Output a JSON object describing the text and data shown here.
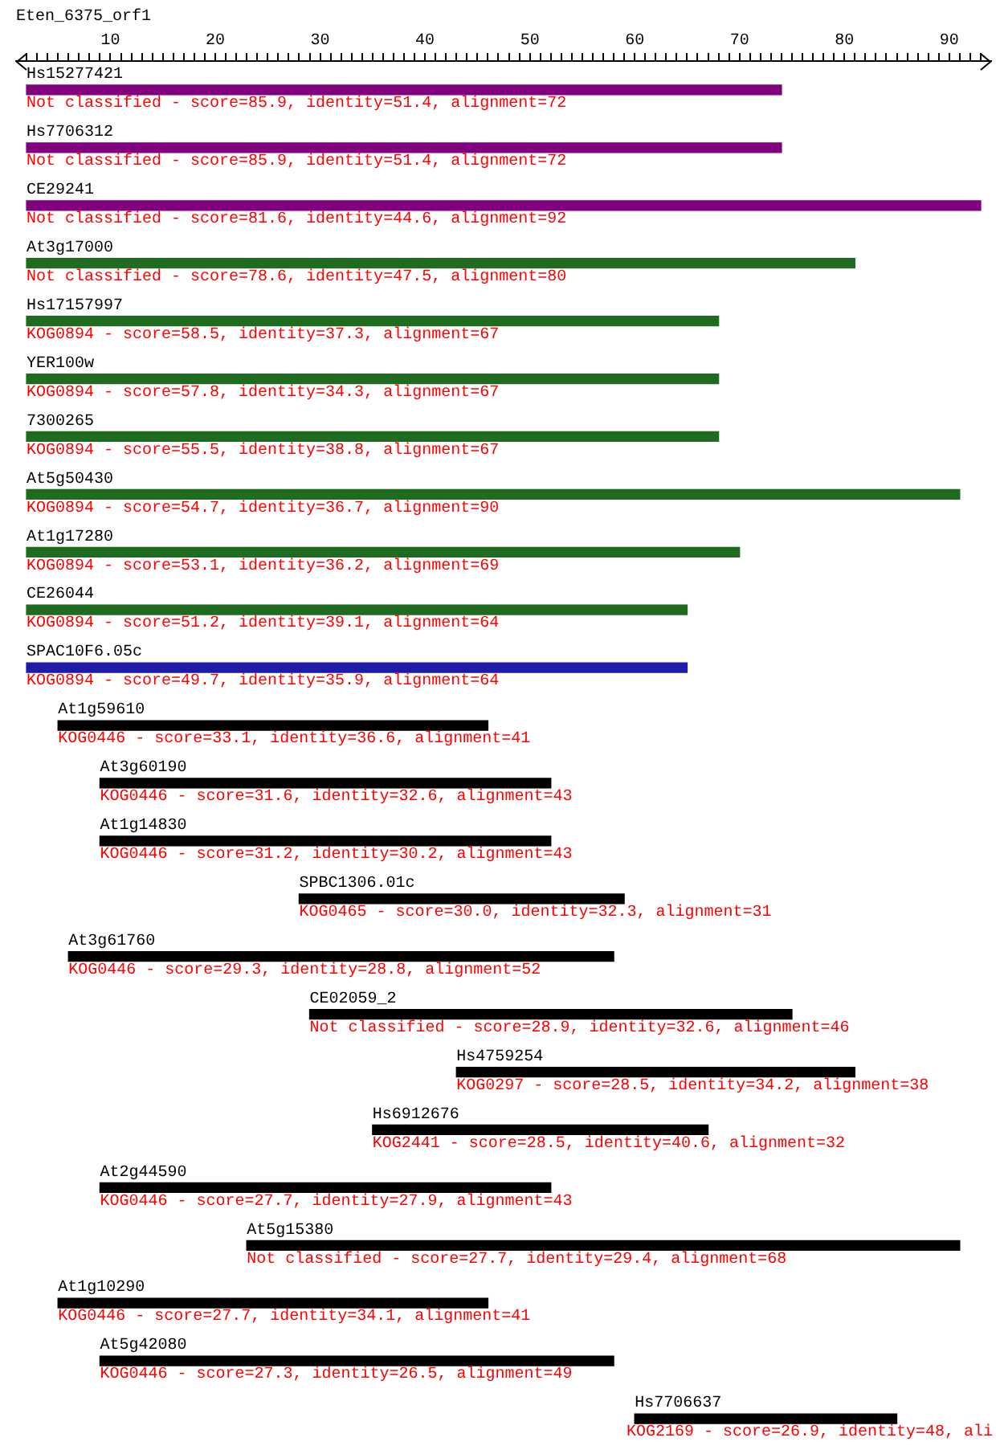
{
  "chart_data": {
    "type": "bar",
    "orientation": "horizontal",
    "title": "Eten_6375_orf1",
    "categories": [
      "Hs15277421",
      "Hs7706312",
      "CE29241",
      "At3g17000",
      "Hs17157997",
      "YER100w",
      "7300265",
      "At5g50430",
      "At1g17280",
      "CE26044",
      "SPAC10F6.05c",
      "At1g59610",
      "At3g60190",
      "At1g14830",
      "SPBC1306.01c",
      "At3g61760",
      "CE02059_2",
      "Hs4759254",
      "Hs6912676",
      "At2g44590",
      "At5g15380",
      "At1g10290",
      "At5g42080",
      "Hs7706637"
    ],
    "base": [
      2,
      2,
      2,
      2,
      2,
      2,
      2,
      2,
      2,
      2,
      2,
      5,
      9,
      9,
      28,
      6,
      29,
      43,
      35,
      9,
      23,
      5,
      9,
      60
    ],
    "values": [
      72,
      72,
      91,
      79,
      66,
      66,
      66,
      89,
      68,
      63,
      63,
      41,
      43,
      43,
      31,
      52,
      46,
      38,
      32,
      43,
      68,
      41,
      49,
      25
    ],
    "colors": [
      "#800080",
      "#800080",
      "#800080",
      "#1f6b1f",
      "#1f6b1f",
      "#1f6b1f",
      "#1f6b1f",
      "#1f6b1f",
      "#1f6b1f",
      "#1f6b1f",
      "#1c1ca8",
      "#000000",
      "#000000",
      "#000000",
      "#000000",
      "#000000",
      "#000000",
      "#000000",
      "#000000",
      "#000000",
      "#000000",
      "#000000",
      "#000000",
      "#000000"
    ],
    "xlim": [
      1,
      94
    ],
    "xticks": [
      {
        "value": 2,
        "label": null
      },
      {
        "value": 3,
        "label": null
      },
      {
        "value": 4,
        "label": null
      },
      {
        "value": 5,
        "label": null
      },
      {
        "value": 6,
        "label": null
      },
      {
        "value": 7,
        "label": null
      },
      {
        "value": 8,
        "label": null
      },
      {
        "value": 9,
        "label": null
      },
      10,
      {
        "value": 11,
        "label": null
      },
      {
        "value": 12,
        "label": null
      },
      {
        "value": 13,
        "label": null
      },
      {
        "value": 14,
        "label": null
      },
      {
        "value": 15,
        "label": null
      },
      {
        "value": 16,
        "label": null
      },
      {
        "value": 17,
        "label": null
      },
      {
        "value": 18,
        "label": null
      },
      {
        "value": 19,
        "label": null
      },
      20,
      {
        "value": 21,
        "label": null
      },
      {
        "value": 22,
        "label": null
      },
      {
        "value": 23,
        "label": null
      },
      {
        "value": 24,
        "label": null
      },
      {
        "value": 25,
        "label": null
      },
      {
        "value": 26,
        "label": null
      },
      {
        "value": 27,
        "label": null
      },
      {
        "value": 28,
        "label": null
      },
      {
        "value": 29,
        "label": null
      },
      30,
      {
        "value": 31,
        "label": null
      },
      {
        "value": 32,
        "label": null
      },
      {
        "value": 33,
        "label": null
      },
      {
        "value": 34,
        "label": null
      },
      {
        "value": 35,
        "label": null
      },
      {
        "value": 36,
        "label": null
      },
      {
        "value": 37,
        "label": null
      },
      {
        "value": 38,
        "label": null
      },
      {
        "value": 39,
        "label": null
      },
      40,
      {
        "value": 41,
        "label": null
      },
      {
        "value": 42,
        "label": null
      },
      {
        "value": 43,
        "label": null
      },
      {
        "value": 44,
        "label": null
      },
      {
        "value": 45,
        "label": null
      },
      {
        "value": 46,
        "label": null
      },
      {
        "value": 47,
        "label": null
      },
      {
        "value": 48,
        "label": null
      },
      {
        "value": 49,
        "label": null
      },
      50,
      {
        "value": 51,
        "label": null
      },
      {
        "value": 52,
        "label": null
      },
      {
        "value": 53,
        "label": null
      },
      {
        "value": 54,
        "label": null
      },
      {
        "value": 55,
        "label": null
      },
      {
        "value": 56,
        "label": null
      },
      {
        "value": 57,
        "label": null
      },
      {
        "value": 58,
        "label": null
      },
      {
        "value": 59,
        "label": null
      },
      60,
      {
        "value": 61,
        "label": null
      },
      {
        "value": 62,
        "label": null
      },
      {
        "value": 63,
        "label": null
      },
      {
        "value": 64,
        "label": null
      },
      {
        "value": 65,
        "label": null
      },
      {
        "value": 66,
        "label": null
      },
      {
        "value": 67,
        "label": null
      },
      {
        "value": 68,
        "label": null
      },
      {
        "value": 69,
        "label": null
      },
      70,
      {
        "value": 71,
        "label": null
      },
      {
        "value": 72,
        "label": null
      },
      {
        "value": 73,
        "label": null
      },
      {
        "value": 74,
        "label": null
      },
      {
        "value": 75,
        "label": null
      },
      {
        "value": 76,
        "label": null
      },
      {
        "value": 77,
        "label": null
      },
      {
        "value": 78,
        "label": null
      },
      {
        "value": 79,
        "label": null
      },
      80,
      {
        "value": 81,
        "label": null
      },
      {
        "value": 82,
        "label": null
      },
      {
        "value": 83,
        "label": null
      },
      {
        "value": 84,
        "label": null
      },
      {
        "value": 85,
        "label": null
      },
      {
        "value": 86,
        "label": null
      },
      {
        "value": 87,
        "label": null
      },
      {
        "value": 88,
        "label": null
      },
      {
        "value": 89,
        "label": null
      },
      90,
      {
        "value": 91,
        "label": null
      },
      {
        "value": 92,
        "label": null
      },
      {
        "value": 93,
        "label": null
      }
    ],
    "grid": false,
    "legend": false,
    "value_labels": [
      "Not classified - score=85.9, identity=51.4, alignment=72",
      "Not classified - score=85.9, identity=51.4, alignment=72",
      "Not classified - score=81.6, identity=44.6, alignment=92",
      "Not classified - score=78.6, identity=47.5, alignment=80",
      "KOG0894 - score=58.5, identity=37.3, alignment=67",
      "KOG0894 - score=57.8, identity=34.3, alignment=67",
      "KOG0894 - score=55.5, identity=38.8, alignment=67",
      "KOG0894 - score=54.7, identity=36.7, alignment=90",
      "KOG0894 - score=53.1, identity=36.2, alignment=69",
      "KOG0894 - score=51.2, identity=39.1, alignment=64",
      "KOG0894 - score=49.7, identity=35.9, alignment=64",
      "KOG0446 - score=33.1, identity=36.6, alignment=41",
      "KOG0446 - score=31.6, identity=32.6, alignment=43",
      "KOG0446 - score=31.2, identity=30.2, alignment=43",
      "KOG0465 - score=30.0, identity=32.3, alignment=31",
      "KOG0446 - score=29.3, identity=28.8, alignment=52",
      "Not classified - score=28.9, identity=32.6, alignment=46",
      "KOG0297 - score=28.5, identity=34.2, alignment=38",
      "KOG2441 - score=28.5, identity=40.6, alignment=32",
      "KOG0446 - score=27.7, identity=27.9, alignment=43",
      "Not classified - score=27.7, identity=29.4, alignment=68",
      "KOG0446 - score=27.7, identity=34.1, alignment=41",
      "KOG0446 - score=27.3, identity=26.5, alignment=49",
      "KOG2169 - score=26.9, identity=48, ali"
    ]
  }
}
